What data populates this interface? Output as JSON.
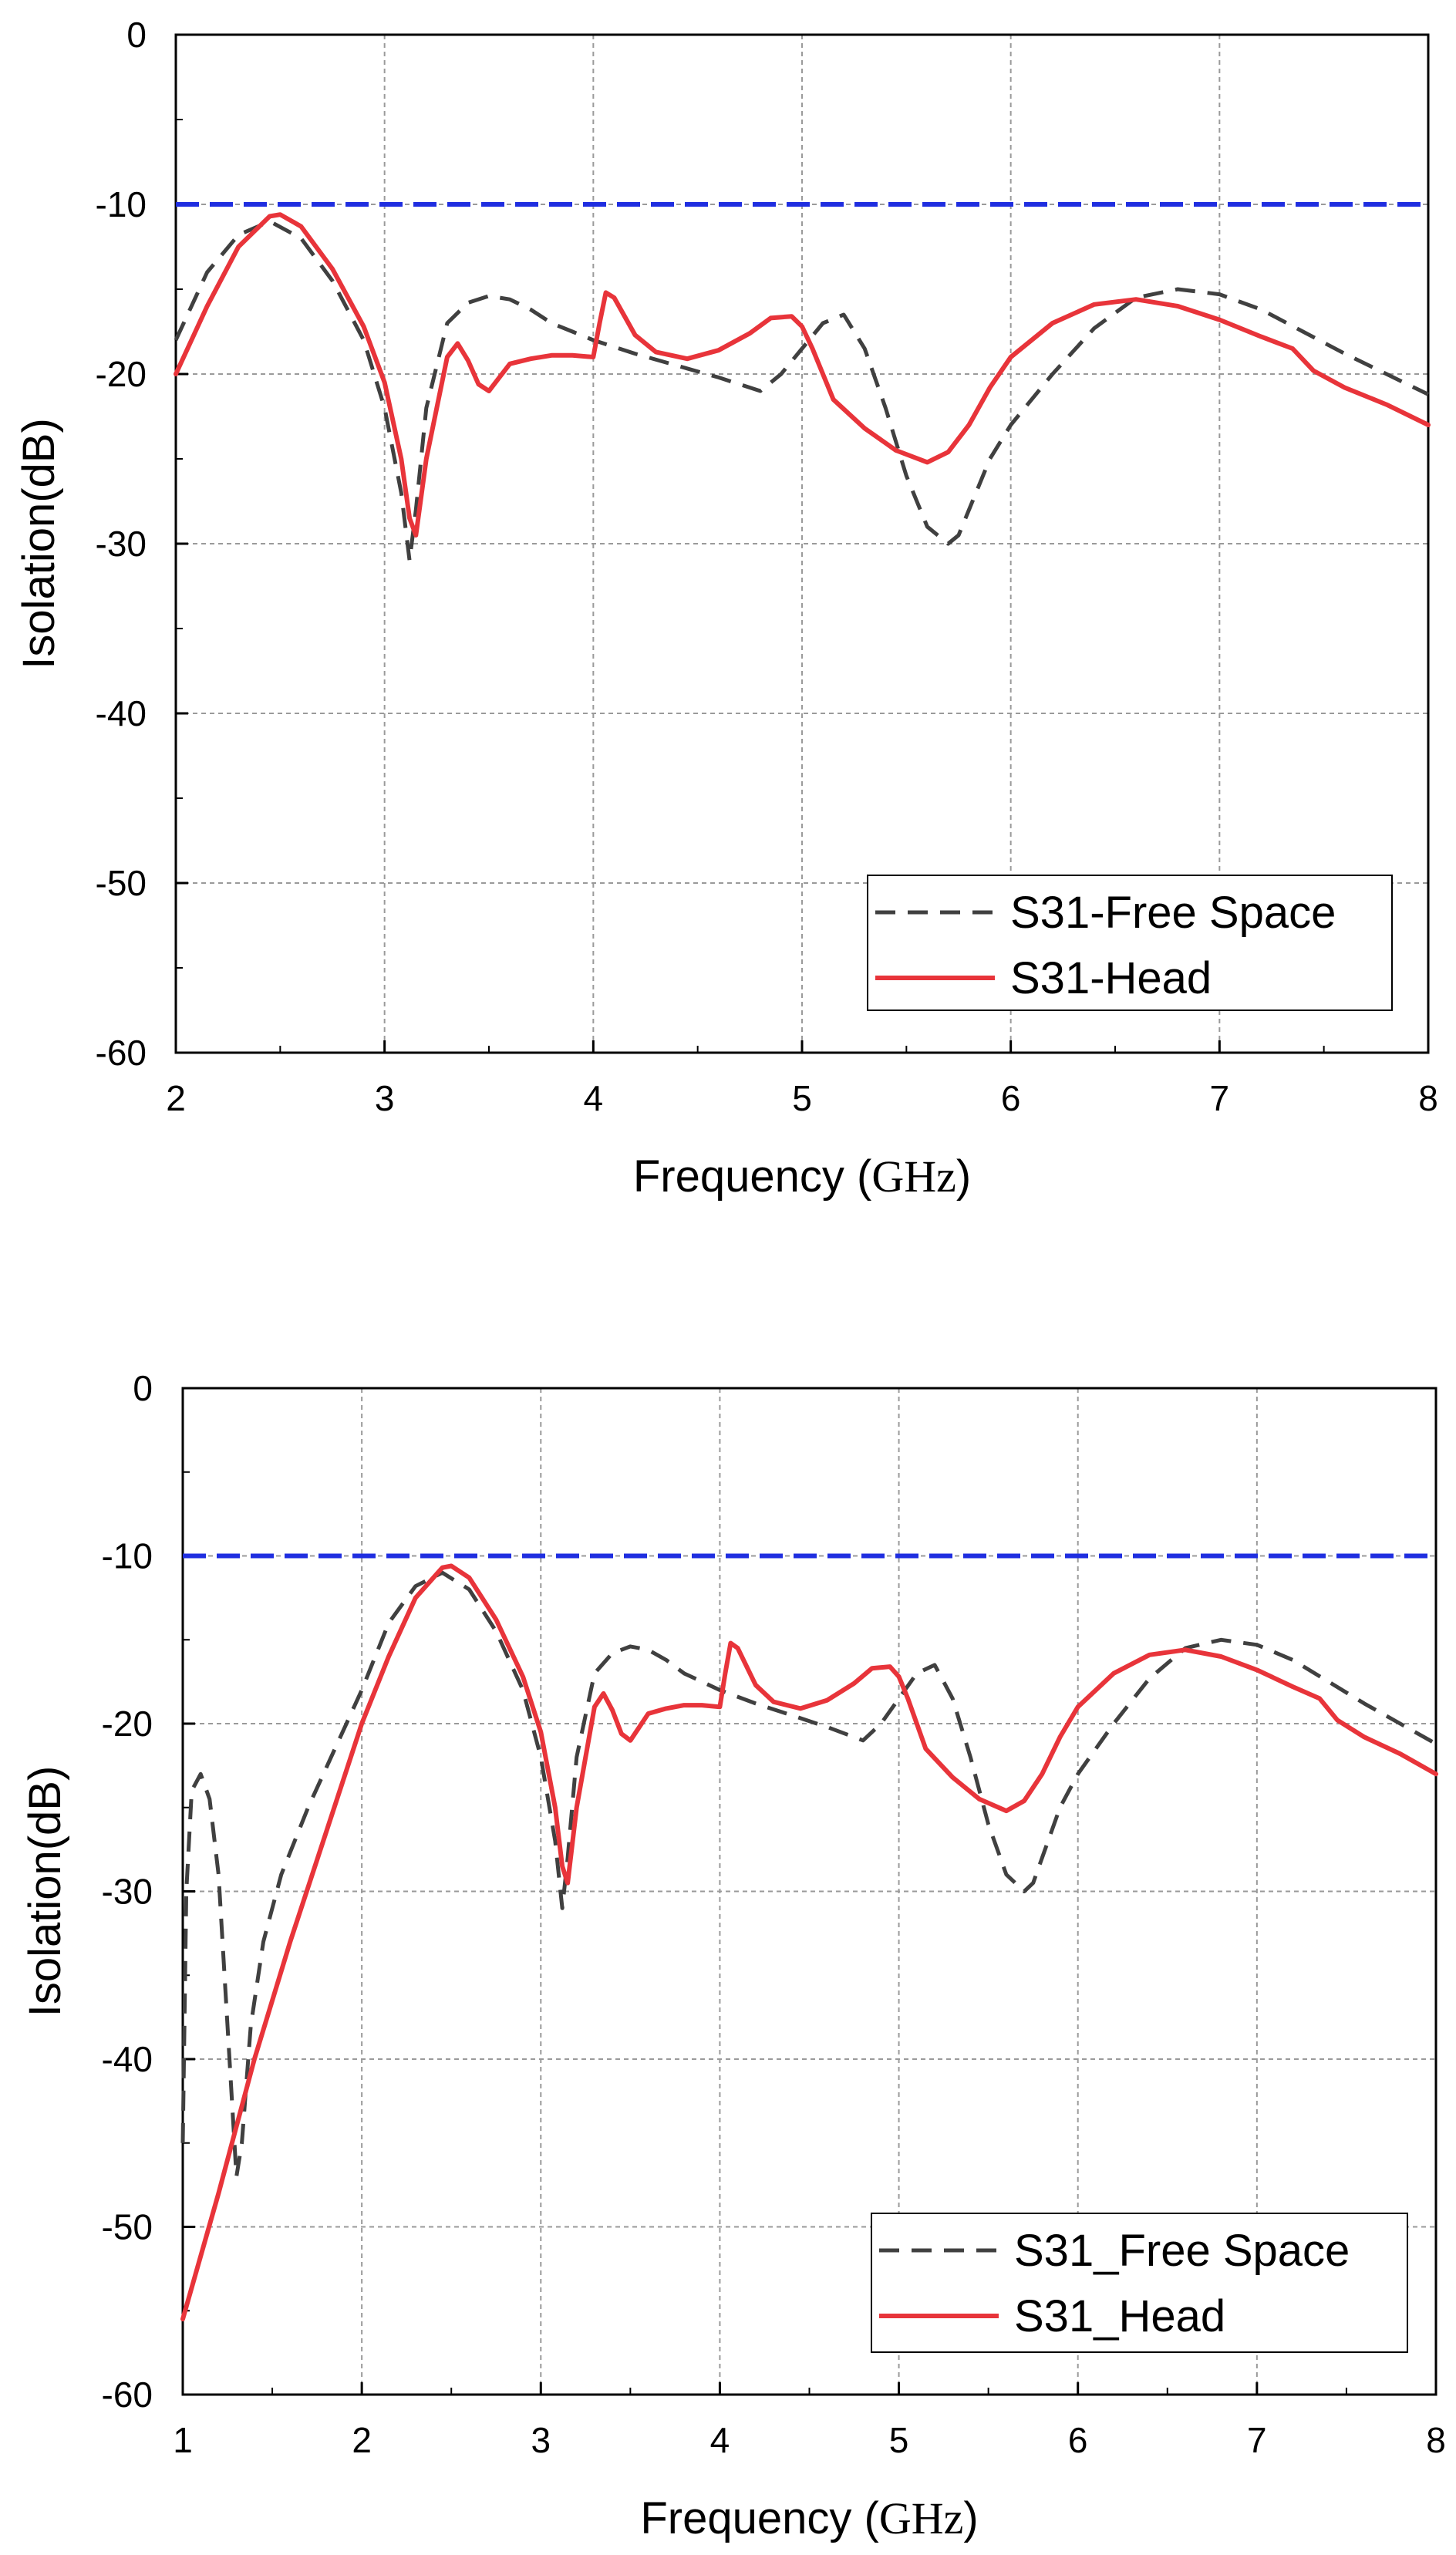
{
  "chart_data": [
    {
      "type": "line",
      "xlabel": "Frequency",
      "xunit": "GHz",
      "ylabel": "Isolation(dB)",
      "xlim": [
        2,
        8
      ],
      "ylim": [
        -60,
        0
      ],
      "xticks": [
        "2",
        "3",
        "4",
        "5",
        "6",
        "7",
        "8"
      ],
      "yticks": [
        "0",
        "-10",
        "-20",
        "-30",
        "-40",
        "-50",
        "-60"
      ],
      "grid": true,
      "legend_position": "bottom-right",
      "reference_line": {
        "y": -10,
        "color": "#1f2ee0",
        "style": "dash"
      },
      "series": [
        {
          "name": "S31-Free Space",
          "color": "#404040",
          "style": "dash",
          "x": [
            2.0,
            2.15,
            2.3,
            2.45,
            2.6,
            2.75,
            2.9,
            3.0,
            3.08,
            3.12,
            3.15,
            3.2,
            3.3,
            3.4,
            3.5,
            3.6,
            3.7,
            3.8,
            3.9,
            4.0,
            4.2,
            4.4,
            4.6,
            4.8,
            4.9,
            5.0,
            5.1,
            5.2,
            5.3,
            5.4,
            5.5,
            5.6,
            5.7,
            5.75,
            5.8,
            5.9,
            6.0,
            6.2,
            6.4,
            6.6,
            6.8,
            7.0,
            7.2,
            7.4,
            7.6,
            7.8,
            8.0
          ],
          "y": [
            -18,
            -14,
            -11.8,
            -11,
            -12,
            -14.5,
            -18,
            -22,
            -27,
            -31,
            -28,
            -22,
            -17,
            -15.8,
            -15.4,
            -15.6,
            -16.2,
            -17,
            -17.5,
            -18,
            -18.8,
            -19.5,
            -20.2,
            -21,
            -20,
            -18.5,
            -17,
            -16.5,
            -18.5,
            -22,
            -26,
            -29,
            -30,
            -29.5,
            -28,
            -25,
            -23,
            -20,
            -17.3,
            -15.5,
            -15,
            -15.3,
            -16.2,
            -17.5,
            -18.8,
            -20,
            -21.2
          ]
        },
        {
          "name": "S31-Head",
          "color": "#e8343a",
          "style": "solid",
          "x": [
            2.0,
            2.15,
            2.3,
            2.45,
            2.5,
            2.6,
            2.75,
            2.9,
            3.0,
            3.08,
            3.12,
            3.15,
            3.2,
            3.3,
            3.35,
            3.4,
            3.45,
            3.5,
            3.55,
            3.6,
            3.7,
            3.8,
            3.9,
            4.0,
            4.03,
            4.06,
            4.1,
            4.2,
            4.3,
            4.45,
            4.6,
            4.75,
            4.85,
            4.95,
            5.0,
            5.05,
            5.15,
            5.3,
            5.45,
            5.6,
            5.7,
            5.8,
            5.9,
            6.0,
            6.2,
            6.4,
            6.6,
            6.8,
            7.0,
            7.2,
            7.35,
            7.45,
            7.6,
            7.8,
            8.0
          ],
          "y": [
            -20,
            -16,
            -12.5,
            -10.7,
            -10.6,
            -11.3,
            -13.8,
            -17.2,
            -20.5,
            -25,
            -28.5,
            -29.5,
            -25,
            -19,
            -18.2,
            -19.2,
            -20.6,
            -21,
            -20.2,
            -19.4,
            -19.1,
            -18.9,
            -18.9,
            -19,
            -17,
            -15.2,
            -15.5,
            -17.7,
            -18.7,
            -19.1,
            -18.6,
            -17.6,
            -16.7,
            -16.6,
            -17.2,
            -18.5,
            -21.5,
            -23.2,
            -24.5,
            -25.2,
            -24.6,
            -23,
            -20.8,
            -19,
            -17,
            -15.9,
            -15.6,
            -16,
            -16.8,
            -17.8,
            -18.5,
            -19.8,
            -20.8,
            -21.8,
            -23
          ]
        }
      ]
    },
    {
      "type": "line",
      "xlabel": "Frequency",
      "xunit": "GHz",
      "ylabel": "Isolation(dB)",
      "xlim": [
        1,
        8
      ],
      "ylim": [
        -60,
        0
      ],
      "xticks": [
        "1",
        "2",
        "3",
        "4",
        "5",
        "6",
        "7",
        "8"
      ],
      "yticks": [
        "0",
        "-10",
        "-20",
        "-30",
        "-40",
        "-50",
        "-60"
      ],
      "grid": true,
      "legend_position": "bottom-right",
      "reference_line": {
        "y": -10,
        "color": "#1f2ee0",
        "style": "dash"
      },
      "series": [
        {
          "name": "S31_Free Space",
          "color": "#404040",
          "style": "dash",
          "x": [
            1.0,
            1.02,
            1.05,
            1.1,
            1.15,
            1.2,
            1.25,
            1.3,
            1.33,
            1.38,
            1.45,
            1.55,
            1.7,
            1.85,
            2.0,
            2.15,
            2.3,
            2.45,
            2.6,
            2.75,
            2.9,
            3.0,
            3.08,
            3.12,
            3.15,
            3.2,
            3.3,
            3.4,
            3.5,
            3.6,
            3.7,
            3.8,
            3.9,
            4.0,
            4.2,
            4.4,
            4.6,
            4.8,
            4.9,
            5.0,
            5.1,
            5.2,
            5.3,
            5.4,
            5.5,
            5.6,
            5.7,
            5.75,
            5.8,
            5.9,
            6.0,
            6.2,
            6.4,
            6.6,
            6.8,
            7.0,
            7.2,
            7.4,
            7.6,
            7.8,
            8.0
          ],
          "y": [
            -45,
            -30,
            -24,
            -23,
            -24.5,
            -29,
            -38,
            -47,
            -45,
            -38,
            -33,
            -29,
            -25,
            -21.5,
            -18,
            -14,
            -11.8,
            -11,
            -12,
            -14.5,
            -18,
            -22,
            -27,
            -31,
            -28,
            -22,
            -17,
            -15.8,
            -15.4,
            -15.6,
            -16.2,
            -17,
            -17.5,
            -18,
            -18.8,
            -19.5,
            -20.2,
            -21,
            -20,
            -18.5,
            -17,
            -16.5,
            -18.5,
            -22,
            -26,
            -29,
            -30,
            -29.5,
            -28,
            -25,
            -23,
            -20,
            -17.3,
            -15.5,
            -15,
            -15.3,
            -16.2,
            -17.5,
            -18.8,
            -20,
            -21.2
          ]
        },
        {
          "name": "S31_Head",
          "color": "#e8343a",
          "style": "solid",
          "x": [
            1.0,
            1.2,
            1.4,
            1.6,
            1.8,
            2.0,
            2.15,
            2.3,
            2.45,
            2.5,
            2.6,
            2.75,
            2.9,
            3.0,
            3.08,
            3.12,
            3.15,
            3.2,
            3.3,
            3.35,
            3.4,
            3.45,
            3.5,
            3.55,
            3.6,
            3.7,
            3.8,
            3.9,
            4.0,
            4.03,
            4.06,
            4.1,
            4.2,
            4.3,
            4.45,
            4.6,
            4.75,
            4.85,
            4.95,
            5.0,
            5.05,
            5.15,
            5.3,
            5.45,
            5.6,
            5.7,
            5.8,
            5.9,
            6.0,
            6.2,
            6.4,
            6.6,
            6.8,
            7.0,
            7.2,
            7.35,
            7.45,
            7.6,
            7.8,
            8.0
          ],
          "y": [
            -55.5,
            -48,
            -40,
            -33,
            -26.5,
            -20,
            -16,
            -12.5,
            -10.7,
            -10.6,
            -11.3,
            -13.8,
            -17.2,
            -20.5,
            -25,
            -28.5,
            -29.5,
            -25,
            -19,
            -18.2,
            -19.2,
            -20.6,
            -21,
            -20.2,
            -19.4,
            -19.1,
            -18.9,
            -18.9,
            -19,
            -17,
            -15.2,
            -15.5,
            -17.7,
            -18.7,
            -19.1,
            -18.6,
            -17.6,
            -16.7,
            -16.6,
            -17.2,
            -18.5,
            -21.5,
            -23.2,
            -24.5,
            -25.2,
            -24.6,
            -23,
            -20.8,
            -19,
            -17,
            -15.9,
            -15.6,
            -16,
            -16.8,
            -17.8,
            -18.5,
            -19.8,
            -20.8,
            -21.8,
            -23
          ]
        }
      ]
    }
  ]
}
